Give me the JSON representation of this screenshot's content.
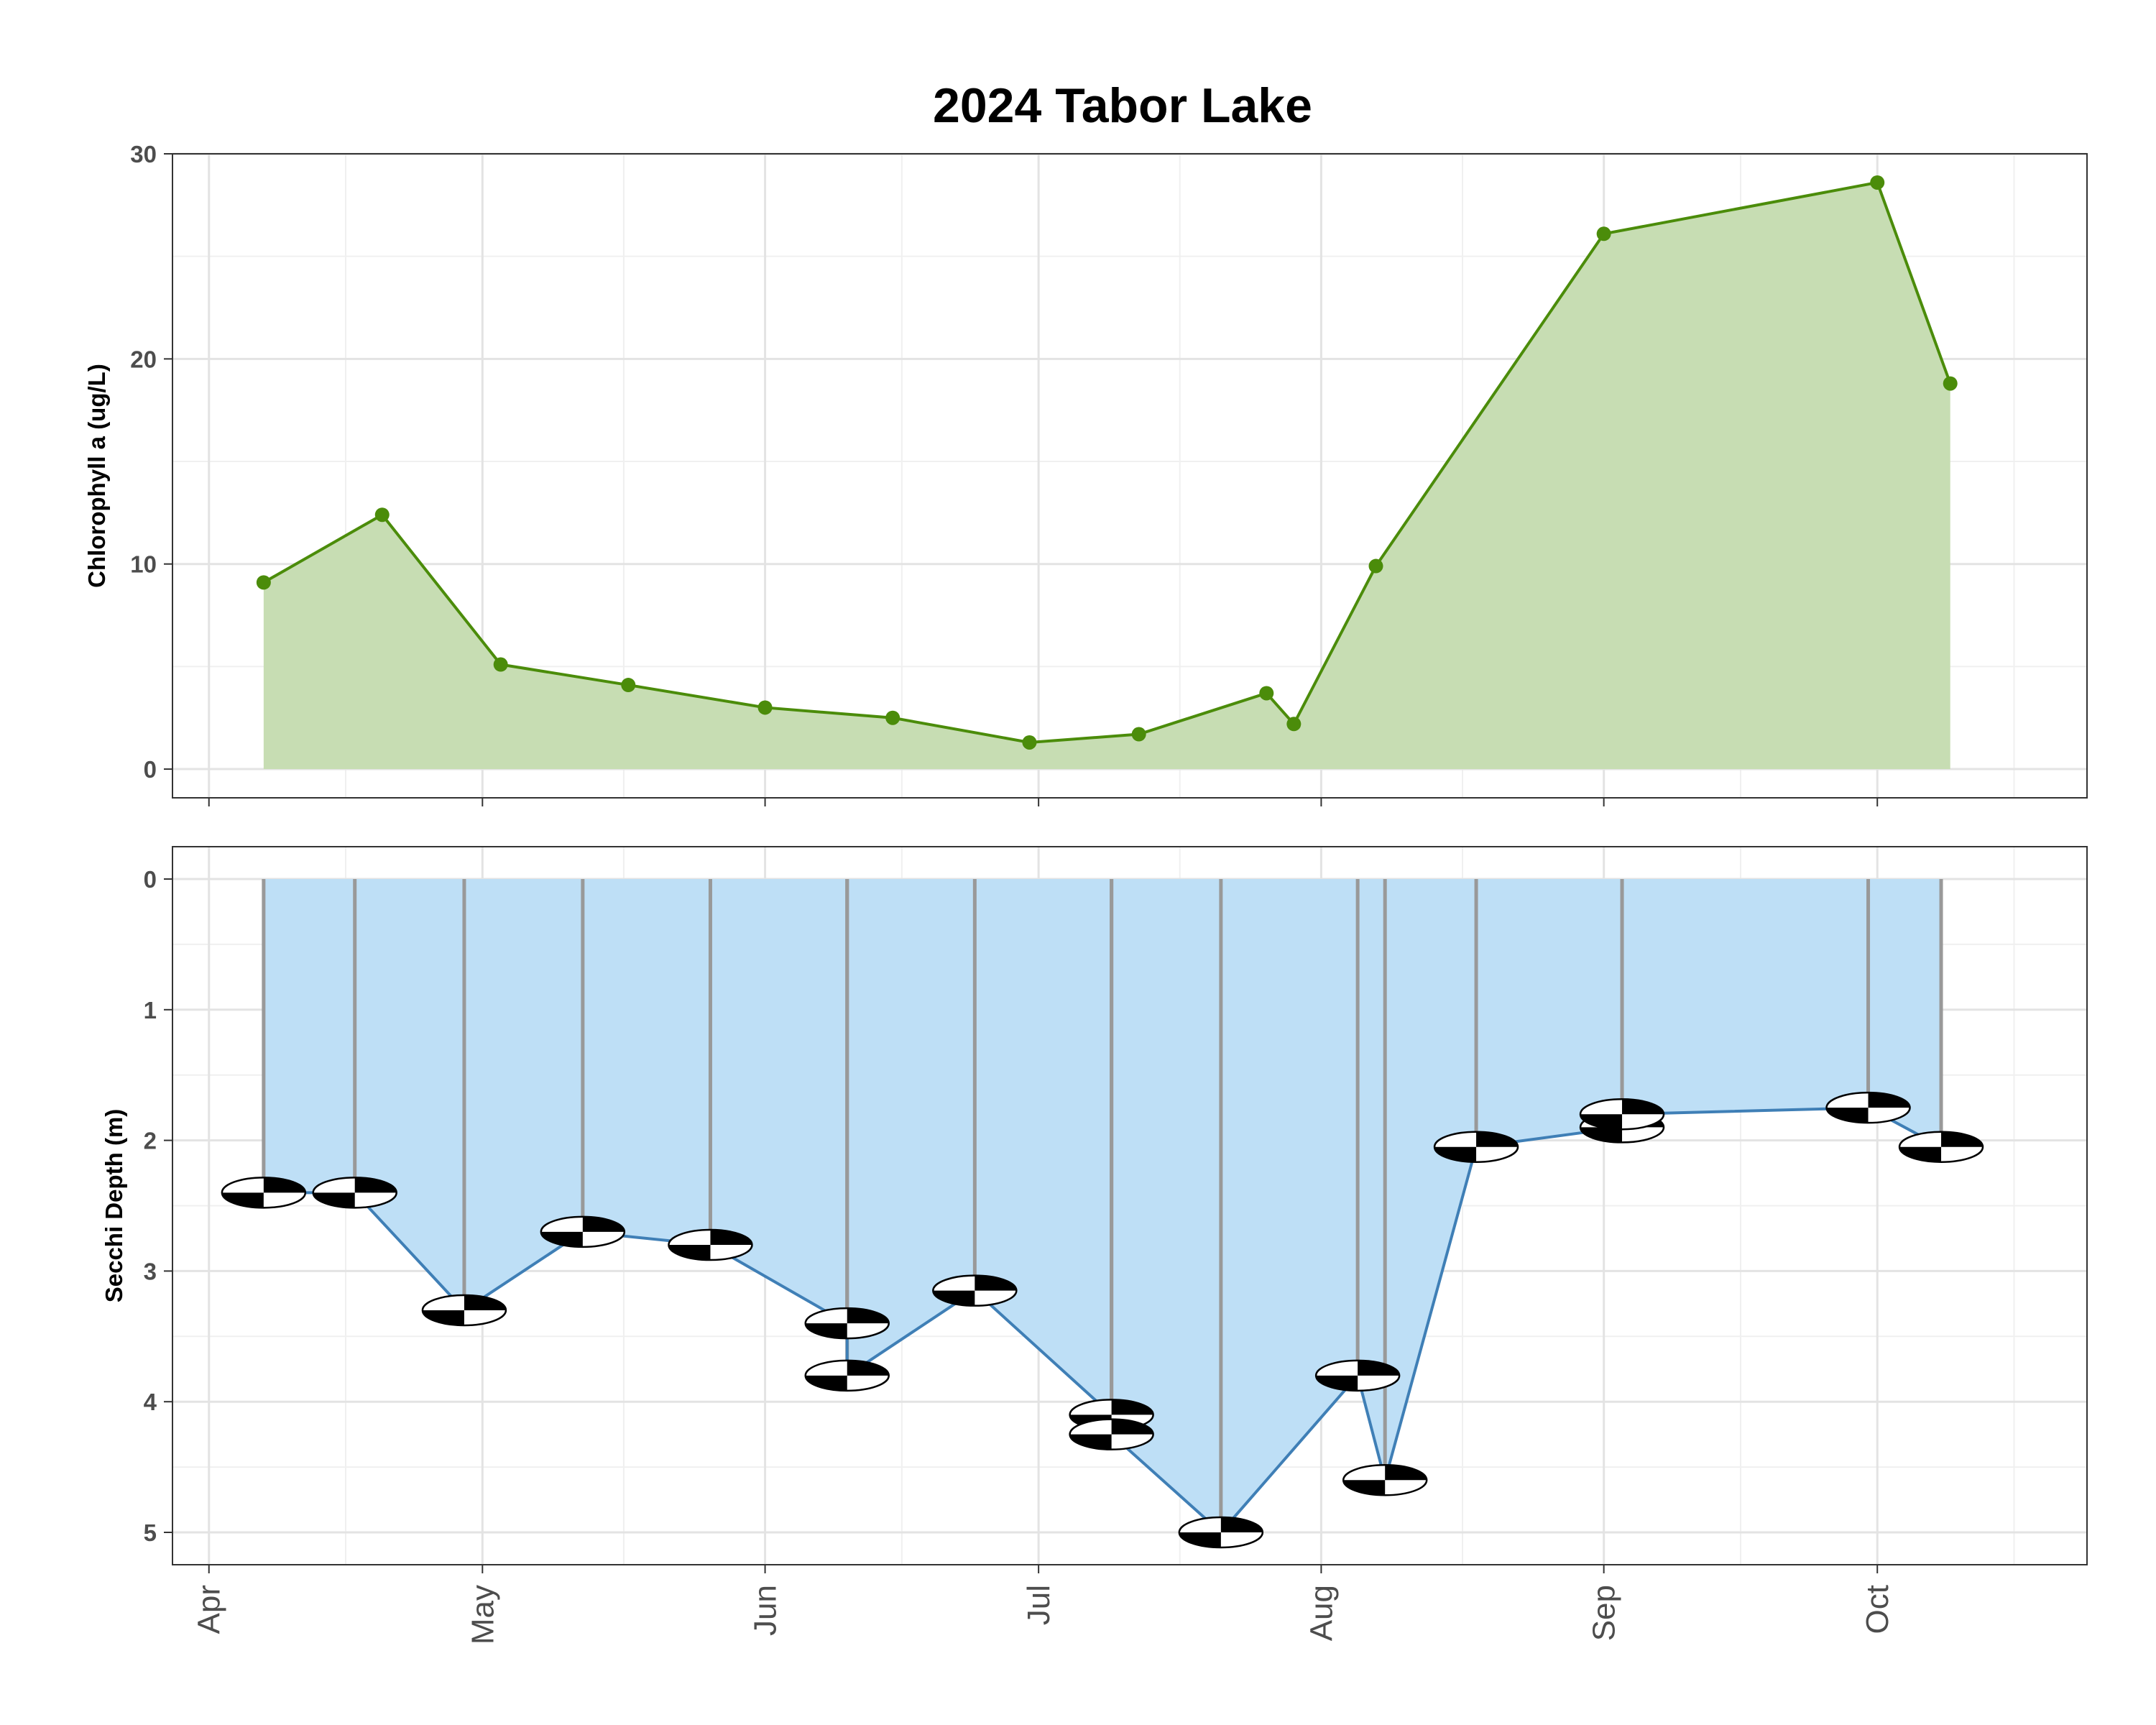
{
  "title": "2024 Tabor Lake",
  "colors": {
    "chl_line": "#4b8c0a",
    "chl_fill": "#c7ddb3",
    "secchi_line": "#3f7fb6",
    "secchi_fill": "#bedff6",
    "secchi_cable": "#999999"
  },
  "chart_data": [
    {
      "type": "area",
      "name": "chlorophyll",
      "ylabel": "Chlorophyll a (ug/L)",
      "ylim": [
        -1.4,
        30
      ],
      "yticks": [
        0,
        10,
        20,
        30
      ],
      "grid": true,
      "x": [
        "2024-04-07",
        "2024-04-20",
        "2024-05-03",
        "2024-05-17",
        "2024-06-01",
        "2024-06-15",
        "2024-06-30",
        "2024-07-12",
        "2024-07-26",
        "2024-07-29",
        "2024-08-07",
        "2024-09-01",
        "2024-10-01",
        "2024-10-09"
      ],
      "values": [
        9.1,
        12.4,
        5.1,
        4.1,
        3.0,
        2.5,
        1.3,
        1.7,
        3.7,
        2.2,
        9.9,
        26.1,
        28.6,
        18.8
      ]
    },
    {
      "type": "area",
      "name": "secchi",
      "ylabel": "Secchi Depth (m)",
      "ylim": [
        0,
        5.2
      ],
      "yaxis_reversed": true,
      "yticks": [
        0,
        1,
        2,
        3,
        4,
        5
      ],
      "grid": true,
      "x": [
        "2024-04-07",
        "2024-04-17",
        "2024-04-29",
        "2024-05-12",
        "2024-05-26",
        "2024-06-10",
        "2024-06-10",
        "2024-06-24",
        "2024-07-09",
        "2024-07-09",
        "2024-07-21",
        "2024-08-05",
        "2024-08-08",
        "2024-08-18",
        "2024-09-03",
        "2024-09-03",
        "2024-09-30",
        "2024-10-08"
      ],
      "values": [
        2.4,
        2.4,
        3.3,
        2.7,
        2.8,
        3.4,
        3.8,
        3.15,
        4.1,
        4.25,
        5.0,
        3.8,
        4.6,
        2.05,
        1.9,
        1.8,
        1.75,
        2.05
      ]
    }
  ],
  "xaxis": {
    "ticks": [
      "2024-04-01",
      "2024-05-01",
      "2024-06-01",
      "2024-07-01",
      "2024-08-01",
      "2024-09-01",
      "2024-10-01"
    ],
    "tick_labels": [
      "Apr",
      "May",
      "Jun",
      "Jul",
      "Aug",
      "Sep",
      "Oct"
    ],
    "range": [
      "2024-03-28",
      "2024-10-24"
    ]
  }
}
